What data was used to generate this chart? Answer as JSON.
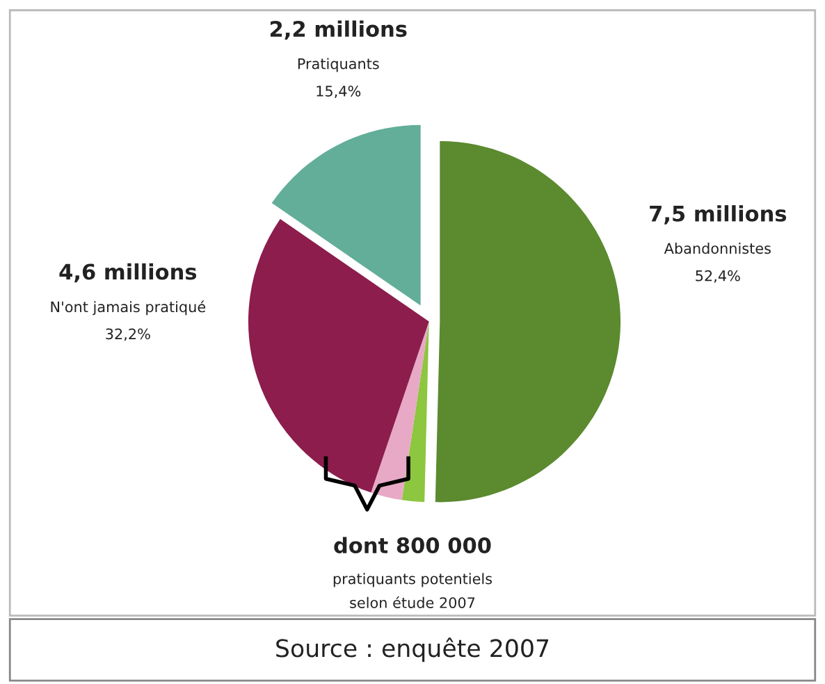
{
  "chart_data": {
    "type": "pie",
    "categories": [
      null,
      null,
      null,
      null,
      null
    ],
    "values": [
      50.4,
      2.0,
      2.8,
      29.4,
      15.4
    ],
    "colors": [
      "#5b8a2f",
      "#8dc63f",
      "#e8a9c6",
      "#8c1d4c",
      "#62ae98"
    ],
    "annotations": [
      "7,5 millions",
      "Abandonnistes",
      "52,4%",
      "4,6 millions",
      "N'ont jamais pratiqué",
      "32,2%",
      "2,2 millions",
      "Pratiquants",
      "15,4%",
      "dont 800 000",
      "pratiquants potentiels",
      "selon étude 2007",
      "Source : enquête 2007"
    ]
  }
}
